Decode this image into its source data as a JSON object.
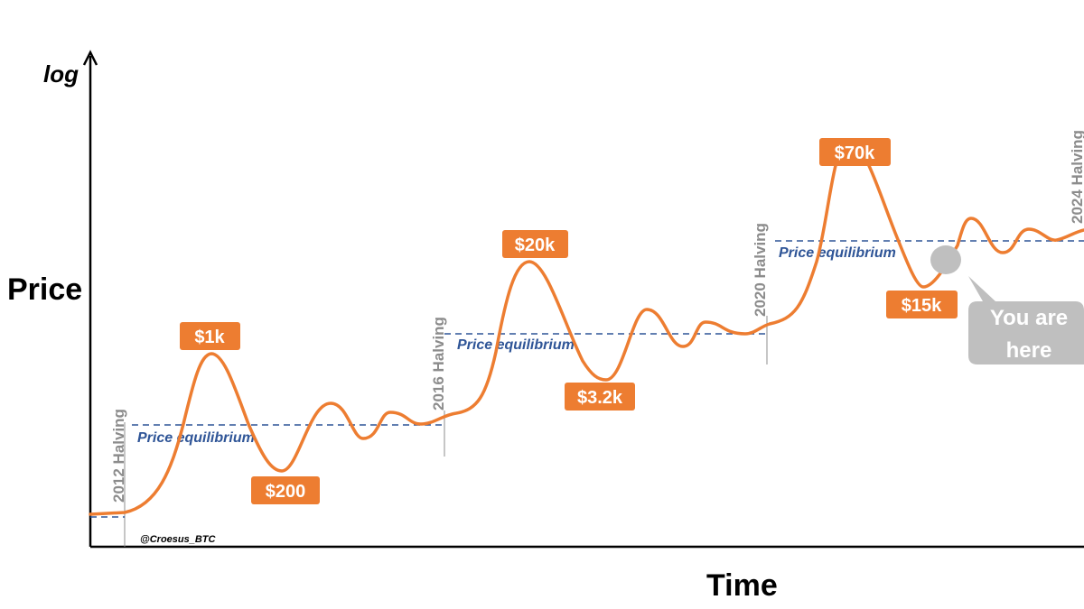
{
  "chart_data": {
    "type": "line",
    "axes": {
      "ylabel": "Price",
      "ylabel_scale": "log",
      "xlabel": "Time"
    },
    "series": [
      {
        "color": "#ed7d31"
      }
    ],
    "halvings": [
      {
        "label": "2012 Halving"
      },
      {
        "label": "2016 Halving"
      },
      {
        "label": "2020 Halving"
      },
      {
        "label": "2024 Halving"
      }
    ],
    "equilibrium_label": "Price equilibrium",
    "price_labels": [
      {
        "text": "$1k",
        "kind": "peak"
      },
      {
        "text": "$200",
        "kind": "trough"
      },
      {
        "text": "$20k",
        "kind": "peak"
      },
      {
        "text": "$3.2k",
        "kind": "trough"
      },
      {
        "text": "$70k",
        "kind": "peak"
      },
      {
        "text": "$15k",
        "kind": "trough"
      }
    ],
    "marker": {
      "line1": "You are",
      "line2": "here"
    },
    "credit": "@Croesus_BTC",
    "colors": {
      "curve": "#ed7d31",
      "tag": "#ed7d31",
      "equilibrium": "#2f5597",
      "halving": "#8c8c8c",
      "marker": "#bfbfbf"
    }
  }
}
